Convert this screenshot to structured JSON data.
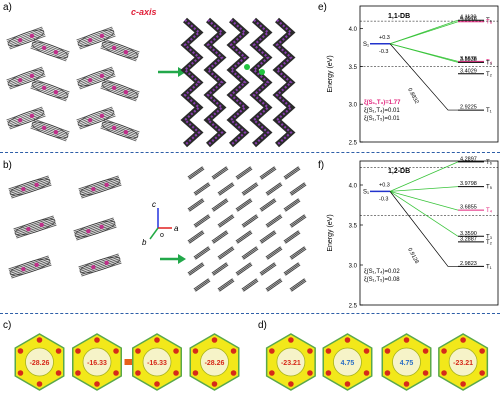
{
  "labels": {
    "a": "a)",
    "b": "b)",
    "c": "c)",
    "d": "d)",
    "e": "e)",
    "f": "f)"
  },
  "panel_a": {
    "axis_label": "c-axis"
  },
  "panel_b": {
    "axes": [
      "c",
      "a",
      "b",
      "o"
    ]
  },
  "chart_data": [
    {
      "type": "energy-level-diagram",
      "title": "1,1-DB",
      "ylabel": "Energy (eV)",
      "ylim": [
        2.5,
        4.3
      ],
      "yticks": [
        2.5,
        3.0,
        3.5,
        4.0
      ],
      "s1": {
        "name": "S₁",
        "offsets": [
          "+0.3",
          "-0.3"
        ]
      },
      "triplets": [
        {
          "name": "T₆",
          "value": 4.112,
          "label": "4.1120",
          "highlight": false
        },
        {
          "name": "T₅",
          "value": 4.0918,
          "label": "4.0918",
          "highlight": true
        },
        {
          "name": "T₄",
          "value": 3.5676,
          "label": "3.5676",
          "highlight": true
        },
        {
          "name": "T₃",
          "value": 3.5538,
          "label": "3.5538",
          "highlight": false
        },
        {
          "name": "T₂",
          "value": 3.4029,
          "label": "3.4029",
          "highlight": false
        },
        {
          "name": "T₁",
          "value": 2.9225,
          "label": "2.9225",
          "highlight": false
        }
      ],
      "diagonal_label": "0.8832",
      "couplings": [
        {
          "text": "ξ(S₁,T₃)=1.77",
          "highlight": true
        },
        {
          "text": "ξ(S₁,T₄)=0.01",
          "highlight": false
        },
        {
          "text": "ξ(S₁,T₅)=0.01",
          "highlight": false
        }
      ]
    },
    {
      "type": "energy-level-diagram",
      "title": "1,2-DB",
      "ylabel": "Energy (eV)",
      "ylim": [
        2.5,
        4.3
      ],
      "yticks": [
        2.5,
        3.0,
        3.5,
        4.0
      ],
      "s1": {
        "name": "S₁",
        "offsets": [
          "+0.3",
          "-0.3"
        ]
      },
      "triplets": [
        {
          "name": "T₆",
          "value": 4.2897,
          "label": "4.2897",
          "highlight": false
        },
        {
          "name": "T₅",
          "value": 3.9798,
          "label": "3.9798",
          "highlight": false
        },
        {
          "name": "T₄",
          "value": 3.6855,
          "label": "3.6855",
          "highlight": true
        },
        {
          "name": "T₃",
          "value": 3.359,
          "label": "3.3590",
          "highlight": false
        },
        {
          "name": "T₂",
          "value": 3.2887,
          "label": "3.2887",
          "highlight": false
        },
        {
          "name": "T₁",
          "value": 2.9823,
          "label": "2.9823",
          "highlight": false
        }
      ],
      "diagonal_label": "0.9128",
      "couplings": [
        {
          "text": "ξ(S₁,T₄)=0.02",
          "highlight": false
        },
        {
          "text": "ξ(S₁,T₅)=0.08",
          "highlight": false
        }
      ]
    }
  ],
  "panel_c": {
    "values": [
      "-28.26",
      "-16.33",
      "-16.33",
      "-28.26"
    ]
  },
  "panel_d": {
    "values": [
      "-23.21",
      "4.75",
      "4.75",
      "-23.21"
    ]
  }
}
